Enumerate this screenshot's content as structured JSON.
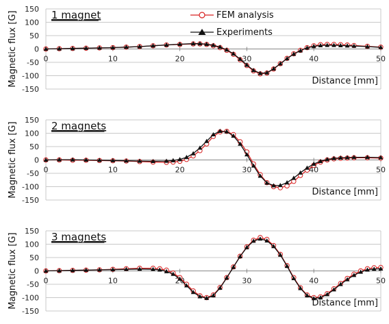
{
  "chart_data": [
    {
      "type": "line",
      "title": "1 magnet",
      "xlabel": "Distance [mm]",
      "ylabel": "Magnetic flux [G]",
      "xlim": [
        0,
        50
      ],
      "ylim": [
        -150,
        150
      ],
      "xticks": [
        0,
        10,
        20,
        30,
        40,
        50
      ],
      "yticks": [
        150,
        100,
        50,
        0,
        -50,
        -100,
        -150
      ],
      "grid": true,
      "legend": "top-center",
      "series": [
        {
          "name": "FEM analysis",
          "color": "#d82020",
          "marker": "open-circle",
          "x": [
            0,
            2,
            4,
            6,
            8,
            10,
            12,
            14,
            16,
            18,
            20,
            22,
            23,
            24,
            25,
            26,
            27,
            28,
            29,
            30,
            31,
            32,
            33,
            34,
            35,
            36,
            37,
            38,
            39,
            40,
            41,
            42,
            43,
            44,
            45,
            46,
            48,
            50
          ],
          "y": [
            0,
            1,
            2,
            3,
            4,
            5,
            7,
            9,
            12,
            15,
            17,
            19,
            19,
            17,
            12,
            5,
            -5,
            -20,
            -40,
            -62,
            -82,
            -93,
            -90,
            -75,
            -55,
            -35,
            -18,
            -5,
            5,
            12,
            16,
            17,
            17,
            16,
            15,
            13,
            10,
            7
          ]
        },
        {
          "name": "Experiments",
          "color": "#111111",
          "marker": "filled-triangle",
          "x": [
            0,
            2,
            4,
            6,
            8,
            10,
            12,
            14,
            16,
            18,
            20,
            22,
            23,
            24,
            25,
            26,
            27,
            28,
            29,
            30,
            31,
            32,
            33,
            34,
            35,
            36,
            37,
            38,
            39,
            40,
            41,
            42,
            43,
            44,
            45,
            46,
            48,
            50
          ],
          "y": [
            0,
            1,
            2,
            3,
            4,
            5,
            7,
            9,
            12,
            15,
            18,
            20,
            20,
            18,
            14,
            7,
            -3,
            -18,
            -38,
            -60,
            -80,
            -91,
            -89,
            -74,
            -55,
            -36,
            -19,
            -6,
            4,
            10,
            13,
            14,
            14,
            13,
            12,
            11,
            9,
            6
          ]
        }
      ]
    },
    {
      "type": "line",
      "title": "2 magnets",
      "xlabel": "Distance [mm]",
      "ylabel": "Magnetic flux [G]",
      "xlim": [
        0,
        50
      ],
      "ylim": [
        -150,
        150
      ],
      "xticks": [
        0,
        10,
        20,
        30,
        40,
        50
      ],
      "yticks": [
        150,
        100,
        50,
        0,
        -50,
        -100,
        -150
      ],
      "grid": true,
      "series": [
        {
          "name": "FEM analysis",
          "color": "#d82020",
          "marker": "open-circle",
          "x": [
            0,
            2,
            4,
            6,
            8,
            10,
            12,
            14,
            16,
            18,
            19,
            20,
            21,
            22,
            23,
            24,
            25,
            26,
            27,
            28,
            29,
            30,
            31,
            32,
            33,
            34,
            35,
            36,
            37,
            38,
            39,
            40,
            41,
            42,
            43,
            44,
            45,
            46,
            48,
            50
          ],
          "y": [
            0,
            0,
            -1,
            -1,
            -2,
            -3,
            -4,
            -6,
            -8,
            -9,
            -8,
            -5,
            2,
            15,
            35,
            60,
            88,
            105,
            107,
            95,
            68,
            30,
            -15,
            -55,
            -85,
            -100,
            -104,
            -97,
            -80,
            -58,
            -38,
            -20,
            -8,
            0,
            4,
            6,
            7,
            8,
            8,
            7
          ],
          "markers": [
            0,
            2,
            4,
            6,
            8,
            10,
            12,
            14,
            16,
            18,
            20,
            22,
            24,
            26,
            28,
            30,
            32,
            34,
            36,
            38,
            40,
            42,
            44,
            46,
            48,
            50
          ]
        },
        {
          "name": "Experiments",
          "color": "#111111",
          "marker": "filled-triangle",
          "x": [
            0,
            2,
            4,
            6,
            8,
            10,
            12,
            14,
            16,
            18,
            19,
            20,
            21,
            22,
            23,
            24,
            25,
            26,
            27,
            28,
            29,
            30,
            31,
            32,
            33,
            34,
            35,
            36,
            37,
            38,
            39,
            40,
            41,
            42,
            43,
            44,
            45,
            46,
            48,
            50
          ],
          "y": [
            0,
            1,
            1,
            0,
            -1,
            -2,
            -3,
            -4,
            -5,
            -4,
            -2,
            2,
            10,
            24,
            45,
            70,
            95,
            108,
            106,
            90,
            60,
            20,
            -22,
            -60,
            -86,
            -96,
            -95,
            -85,
            -68,
            -48,
            -30,
            -15,
            -5,
            2,
            6,
            8,
            9,
            10,
            10,
            9
          ]
        }
      ]
    },
    {
      "type": "line",
      "title": "3 magnets",
      "xlabel": "Distance [mm]",
      "ylabel": "Magnetic flux [G]",
      "xlim": [
        0,
        50
      ],
      "ylim": [
        -150,
        150
      ],
      "xticks": [
        0,
        10,
        20,
        30,
        40,
        50
      ],
      "yticks": [
        150,
        100,
        50,
        0,
        -50,
        -100,
        -150
      ],
      "grid": true,
      "series": [
        {
          "name": "FEM analysis",
          "color": "#d82020",
          "marker": "open-circle",
          "x": [
            0,
            2,
            4,
            6,
            8,
            10,
            12,
            14,
            16,
            17,
            18,
            19,
            20,
            21,
            22,
            23,
            24,
            25,
            26,
            27,
            28,
            29,
            30,
            31,
            32,
            33,
            34,
            35,
            36,
            37,
            38,
            39,
            40,
            41,
            42,
            43,
            44,
            45,
            46,
            47,
            48,
            49,
            50
          ],
          "y": [
            0,
            1,
            2,
            3,
            4,
            6,
            8,
            10,
            10,
            8,
            3,
            -8,
            -25,
            -50,
            -75,
            -93,
            -100,
            -90,
            -62,
            -25,
            15,
            55,
            90,
            115,
            125,
            118,
            95,
            62,
            20,
            -25,
            -63,
            -90,
            -100,
            -97,
            -85,
            -67,
            -47,
            -28,
            -12,
            0,
            8,
            12,
            13
          ]
        },
        {
          "name": "Experiments",
          "color": "#111111",
          "marker": "filled-triangle",
          "x": [
            0,
            2,
            4,
            6,
            8,
            10,
            12,
            14,
            16,
            17,
            18,
            19,
            20,
            21,
            22,
            23,
            24,
            25,
            26,
            27,
            28,
            29,
            30,
            31,
            32,
            33,
            34,
            35,
            36,
            37,
            38,
            39,
            40,
            41,
            42,
            43,
            44,
            45,
            46,
            47,
            48,
            49,
            50
          ],
          "y": [
            0,
            1,
            2,
            3,
            4,
            5,
            6,
            7,
            6,
            4,
            -2,
            -12,
            -30,
            -55,
            -80,
            -96,
            -102,
            -92,
            -64,
            -26,
            14,
            54,
            88,
            112,
            120,
            113,
            92,
            60,
            18,
            -28,
            -65,
            -92,
            -103,
            -100,
            -88,
            -70,
            -50,
            -32,
            -16,
            -4,
            4,
            7,
            8
          ]
        }
      ]
    }
  ],
  "legend": {
    "fem_label": "FEM analysis",
    "exp_label": "Experiments"
  }
}
